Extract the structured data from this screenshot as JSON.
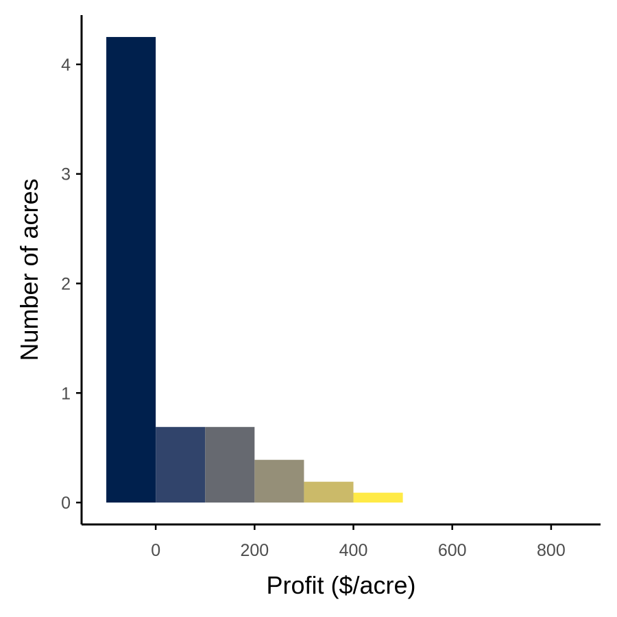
{
  "chart_data": {
    "type": "bar",
    "title": "",
    "xlabel": "Profit ($/acre)",
    "ylabel": "Number of acres",
    "bins": [
      {
        "x0": -100,
        "x1": 0,
        "value": 4.25,
        "color": "#00204d"
      },
      {
        "x0": 0,
        "x1": 100,
        "value": 0.69,
        "color": "#31446b"
      },
      {
        "x0": 100,
        "x1": 200,
        "value": 0.69,
        "color": "#666970"
      },
      {
        "x0": 200,
        "x1": 300,
        "value": 0.39,
        "color": "#958f78"
      },
      {
        "x0": 300,
        "x1": 400,
        "value": 0.19,
        "color": "#cbba69"
      },
      {
        "x0": 400,
        "x1": 500,
        "value": 0.09,
        "color": "#ffea46"
      }
    ],
    "xlim": [
      -150,
      900
    ],
    "ylim": [
      -0.2,
      4.45
    ],
    "x_ticks": [
      0,
      200,
      400,
      600,
      800
    ],
    "y_ticks": [
      0,
      1,
      2,
      3,
      4
    ],
    "grid": false,
    "legend": "none"
  }
}
